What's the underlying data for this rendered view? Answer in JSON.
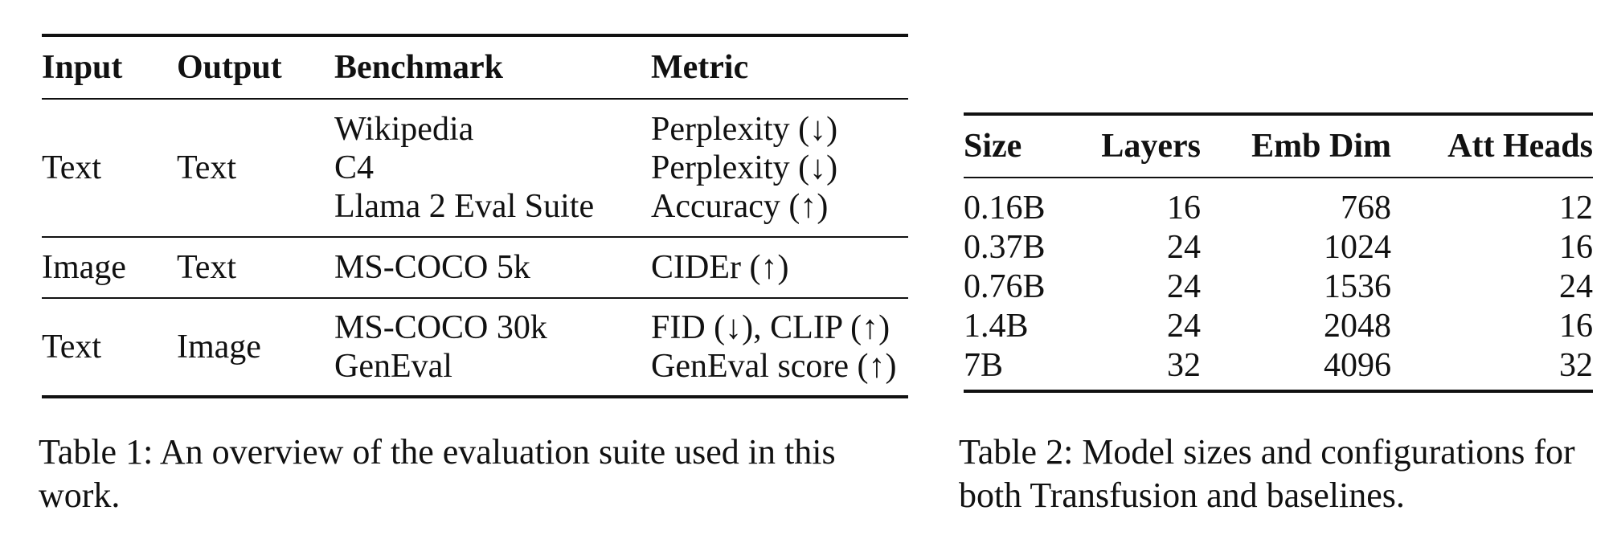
{
  "table1": {
    "headers": [
      "Input",
      "Output",
      "Benchmark",
      "Metric"
    ],
    "groups": [
      {
        "input": "Text",
        "output": "Text",
        "benchmarks": [
          "Wikipedia",
          "C4",
          "Llama 2 Eval Suite"
        ],
        "metrics": [
          "Perplexity (↓)",
          "Perplexity (↓)",
          "Accuracy (↑)"
        ]
      },
      {
        "input": "Image",
        "output": "Text",
        "benchmarks": [
          "MS-COCO 5k"
        ],
        "metrics": [
          "CIDEr (↑)"
        ]
      },
      {
        "input": "Text",
        "output": "Image",
        "benchmarks": [
          "MS-COCO 30k",
          "GenEval"
        ],
        "metrics": [
          "FID (↓), CLIP (↑)",
          "GenEval score (↑)"
        ]
      }
    ],
    "caption": "Table 1: An overview of the evaluation suite used in this work."
  },
  "table2": {
    "headers": [
      "Size",
      "Layers",
      "Emb Dim",
      "Att Heads"
    ],
    "rows": [
      [
        "0.16B",
        "16",
        "768",
        "12"
      ],
      [
        "0.37B",
        "24",
        "1024",
        "16"
      ],
      [
        "0.76B",
        "24",
        "1536",
        "24"
      ],
      [
        "1.4B",
        "24",
        "2048",
        "16"
      ],
      [
        "7B",
        "32",
        "4096",
        "32"
      ]
    ],
    "caption": "Table 2: Model sizes and configurations for both Transfusion and baselines."
  }
}
